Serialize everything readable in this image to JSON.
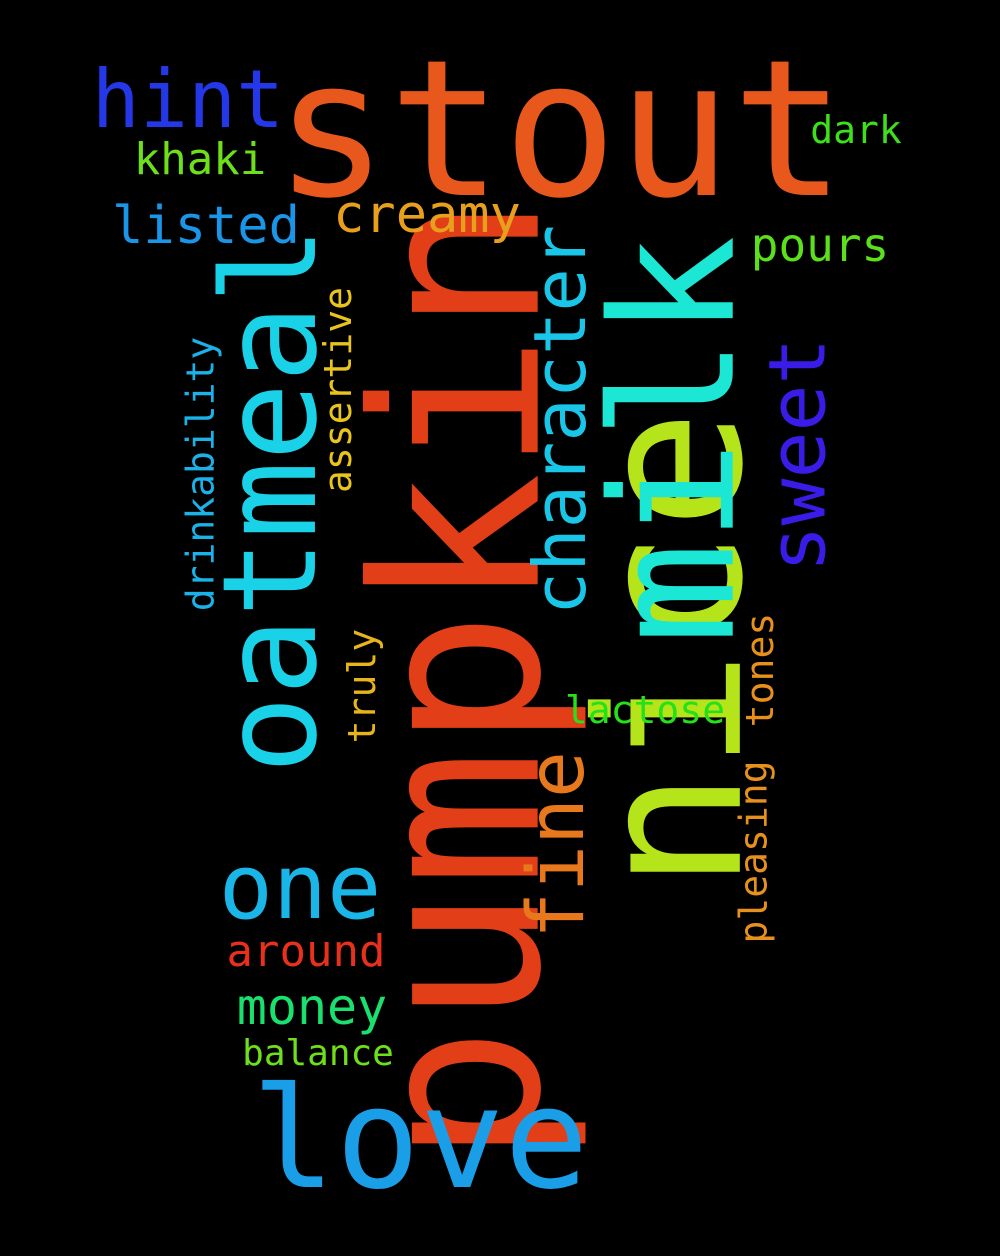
{
  "background_color": "#000000",
  "words": [
    {
      "text": "stout",
      "color": "#e8581c"
    },
    {
      "text": "pumpkin",
      "color": "#e23e18"
    },
    {
      "text": "nice",
      "color": "#b6e41a"
    },
    {
      "text": "milk",
      "color": "#1ce6d4"
    },
    {
      "text": "oatmeal",
      "color": "#1ad2e8"
    },
    {
      "text": "love",
      "color": "#1a9ee8"
    },
    {
      "text": "hint",
      "color": "#2438e8"
    },
    {
      "text": "character",
      "color": "#1ac6e8"
    },
    {
      "text": "sweet",
      "color": "#3a1ce8"
    },
    {
      "text": "one",
      "color": "#1ab6e8"
    },
    {
      "text": "fine",
      "color": "#e8781c"
    },
    {
      "text": "creamy",
      "color": "#e8a01c"
    },
    {
      "text": "listed",
      "color": "#1a96e8"
    },
    {
      "text": "khaki",
      "color": "#6ee01a"
    },
    {
      "text": "dark",
      "color": "#3ee01a"
    },
    {
      "text": "pours",
      "color": "#5ce01a"
    },
    {
      "text": "money",
      "color": "#1ae06e"
    },
    {
      "text": "around",
      "color": "#e8301c"
    },
    {
      "text": "lactose",
      "color": "#26e01a"
    },
    {
      "text": "balance",
      "color": "#6ee01a"
    },
    {
      "text": "drinkability",
      "color": "#1ab2e8"
    },
    {
      "text": "assertive",
      "color": "#e8c41c"
    },
    {
      "text": "truly",
      "color": "#e8b41c"
    },
    {
      "text": "tones",
      "color": "#e8901c"
    },
    {
      "text": "pleasing",
      "color": "#e8901c"
    }
  ]
}
